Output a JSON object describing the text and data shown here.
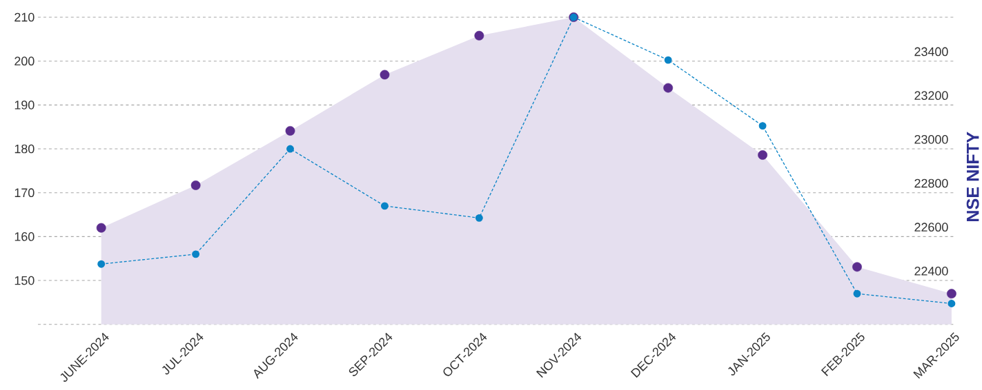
{
  "chart_data": {
    "type": "area",
    "categories": [
      "JUNE-2024",
      "JUL-2024",
      "AUG-2024",
      "SEP-2024",
      "OCT-2024",
      "NOV-2024",
      "DEC-2024",
      "JAN-2025",
      "FEB-2025",
      "MAR-2025"
    ],
    "ylim": [
      140,
      210
    ],
    "yticks": [
      {
        "value": 140,
        "label": null
      },
      150,
      160,
      170,
      180,
      190,
      200,
      210
    ],
    "y2label": "NSE NIFTY",
    "y2lim": [
      22200,
      23600
    ],
    "y2ticks": [
      22400,
      22600,
      22800,
      23000,
      23200,
      23400
    ],
    "grid": "y",
    "series": [
      {
        "color": "#e5dfef",
        "values": [
          162,
          171.7,
          184.1,
          196.9,
          205.8,
          210,
          193.9,
          178.6,
          153.1,
          147
        ]
      },
      {
        "type": "line",
        "axis": "y2",
        "color": "#0a84c6",
        "line_style": "dashed",
        "marker": "circle",
        "values": [
          22475,
          22520,
          23000,
          22740,
          22685,
          23600,
          23405,
          23105,
          22340,
          22295
        ]
      },
      {
        "type": "scatter",
        "color": "#5b2d8e",
        "marker": "circle",
        "values": [
          162,
          171.7,
          184.1,
          196.9,
          205.8,
          210,
          193.9,
          178.6,
          153.1,
          147
        ]
      }
    ]
  }
}
